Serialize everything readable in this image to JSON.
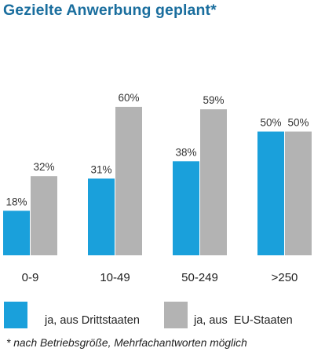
{
  "chart_data": {
    "type": "bar",
    "title": "Gezielte Anwerbung geplant*",
    "categories": [
      "0-9",
      "10-49",
      "50-249",
      ">250"
    ],
    "series": [
      {
        "name": "ja, aus Drittstaaten",
        "color": "#1aa0db",
        "values": [
          18,
          31,
          38,
          50
        ],
        "labels": [
          "18%",
          "31%",
          "38%",
          "50%"
        ]
      },
      {
        "name": "ja, aus  EU-Staaten",
        "color": "#b3b3b3",
        "values": [
          32,
          60,
          59,
          50
        ],
        "labels": [
          "32%",
          "60%",
          "59%",
          "50%"
        ]
      }
    ],
    "ylim": [
      0,
      100
    ],
    "grid": false,
    "legend_position": "bottom",
    "footnote": "* nach Betriebsgröße, Mehrfachantworten möglich"
  }
}
